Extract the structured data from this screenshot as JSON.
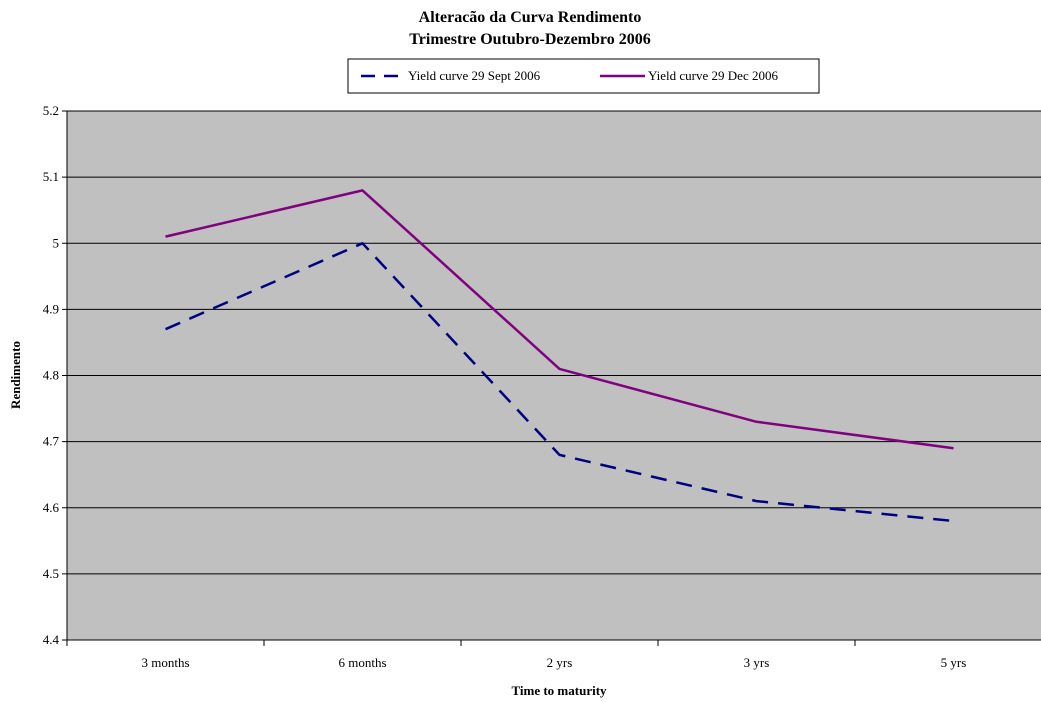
{
  "chart_data": {
    "type": "line",
    "title": [
      "Alteracão da Curva Rendimento",
      "Trimestre Outubro-Dezembro 2006"
    ],
    "xlabel": "Time to maturity",
    "ylabel": "Rendimento",
    "categories": [
      "3 months",
      "6 months",
      "2 yrs",
      "3 yrs",
      "5 yrs"
    ],
    "ylim": [
      4.4,
      5.2
    ],
    "yticks": [
      "4.4",
      "4.5",
      "4.6",
      "4.7",
      "4.8",
      "4.9",
      "5",
      "5.1",
      "5.2"
    ],
    "grid": true,
    "legend": "top",
    "series": [
      {
        "name": "Yield curve 29 Sept 2006",
        "values": [
          4.87,
          5.0,
          4.68,
          4.61,
          4.58
        ],
        "color": "#000080",
        "dash": "dashed"
      },
      {
        "name": "Yield curve 29 Dec 2006",
        "values": [
          5.01,
          5.08,
          4.81,
          4.73,
          4.69
        ],
        "color": "#800080",
        "dash": "solid"
      }
    ],
    "colors": {
      "plot_background": "#c0c0c0",
      "gridline": "#000000"
    }
  }
}
